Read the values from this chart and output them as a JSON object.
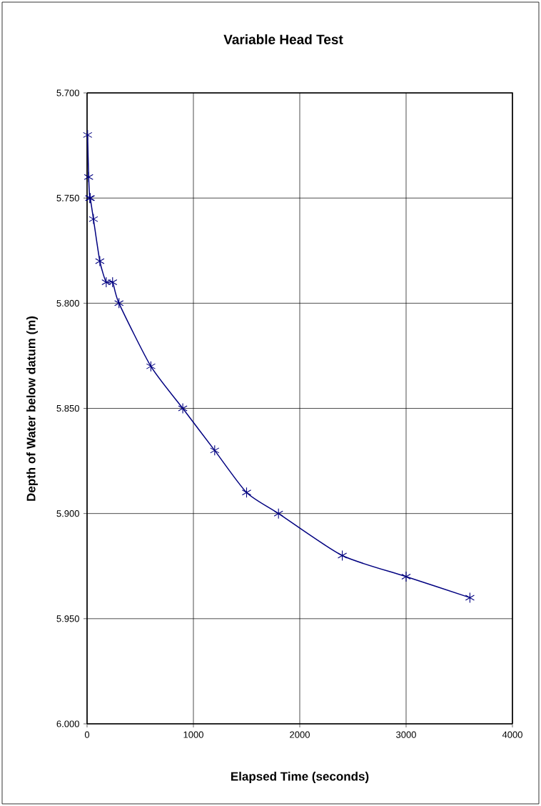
{
  "chart_data": {
    "type": "line",
    "title": "Variable Head Test",
    "xlabel": "Elapsed Time (seconds)",
    "ylabel": "Depth of Water below datum (m)",
    "x": [
      5,
      15,
      25,
      30,
      60,
      120,
      180,
      240,
      300,
      600,
      900,
      1200,
      1500,
      1800,
      2400,
      3000,
      3600
    ],
    "series": [
      {
        "color": "#000080",
        "values": [
          5.72,
          5.74,
          5.75,
          5.75,
          5.76,
          5.78,
          5.79,
          5.79,
          5.8,
          5.83,
          5.85,
          5.87,
          5.89,
          5.9,
          5.92,
          5.93,
          5.94
        ]
      }
    ],
    "xlim": [
      0,
      4000
    ],
    "xticks": [
      0,
      1000,
      2000,
      3000,
      4000
    ],
    "ylim": [
      6.0,
      5.7
    ],
    "yticks": [
      {
        "value": 5.7,
        "label": "5.700"
      },
      {
        "value": 5.75,
        "label": "5.750"
      },
      {
        "value": 5.8,
        "label": "5.800"
      },
      {
        "value": 5.85,
        "label": "5.850"
      },
      {
        "value": 5.9,
        "label": "5.900"
      },
      {
        "value": 5.95,
        "label": "5.950"
      },
      {
        "value": 6.0,
        "label": "6.000"
      }
    ],
    "grid": true,
    "marker": "cross",
    "line_style": "solid"
  }
}
